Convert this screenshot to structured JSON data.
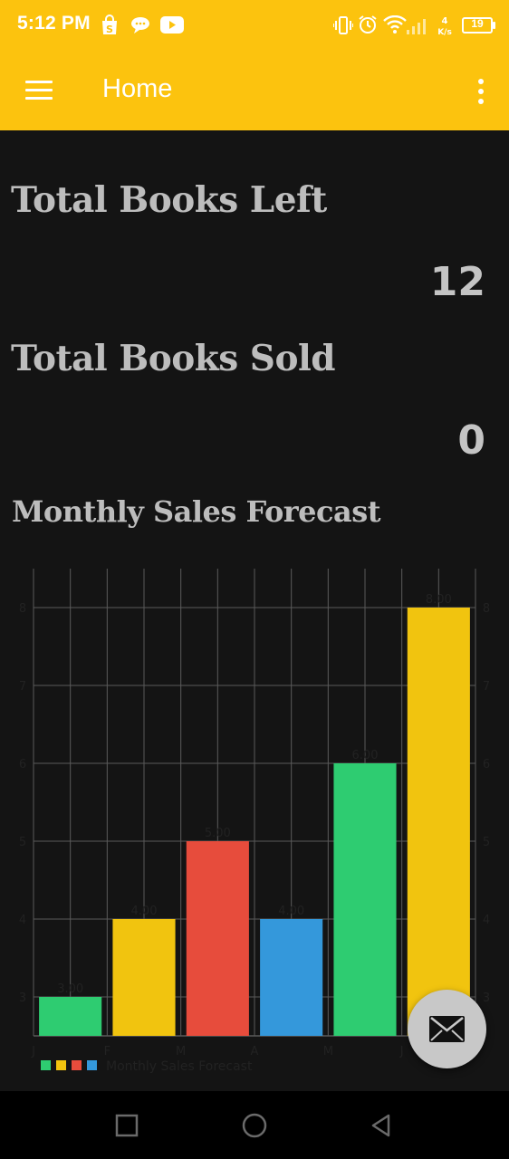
{
  "status_bar": {
    "time": "5:12 PM",
    "icons": [
      "shopping-bag-icon",
      "chat-bubble-icon",
      "youtube-icon",
      "vibrate-icon",
      "alarm-icon",
      "wifi-icon",
      "signal-icon",
      "data-speed-icon"
    ],
    "battery": "19"
  },
  "app_bar": {
    "title": "Home",
    "menu_icon": "hamburger-menu-icon",
    "overflow_icon": "more-vert-icon",
    "background": "#fcc30e"
  },
  "stats": {
    "books_left_label": "Total Books Left",
    "books_left_value": "12",
    "books_sold_label": "Total Books Sold",
    "books_sold_value": "0"
  },
  "chart_section": {
    "title": "Monthly Sales Forecast"
  },
  "chart_data": {
    "type": "bar",
    "categories": [
      "J",
      "F",
      "M",
      "A",
      "M",
      "J"
    ],
    "values": [
      3.0,
      4.0,
      5.0,
      4.0,
      6.0,
      8.0
    ],
    "value_labels": [
      "3.00",
      "4.00",
      "5.00",
      "4.00",
      "6.00",
      "8.00"
    ],
    "colors": [
      "#2ecc71",
      "#f1c40f",
      "#e74c3c",
      "#3498db",
      "#2ecc71",
      "#f1c40f"
    ],
    "yticks": [
      "3",
      "4",
      "5",
      "6",
      "7",
      "8"
    ],
    "ylim": [
      2.5,
      8.5
    ],
    "grid": true,
    "legend_label": "Monthly Sales Forecast",
    "legend_position": "bottom-left"
  },
  "fab": {
    "icon": "mail-icon"
  },
  "nav_bar": {
    "icons": [
      "recents-square-icon",
      "home-circle-icon",
      "back-triangle-icon"
    ]
  }
}
